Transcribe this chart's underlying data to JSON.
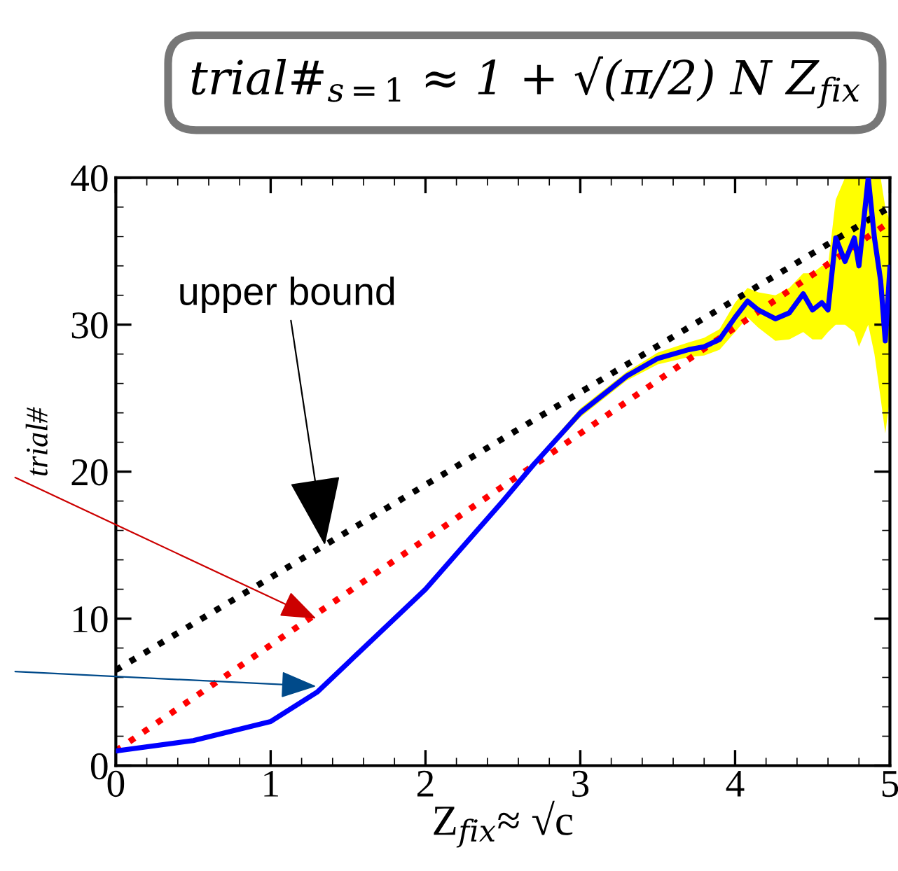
{
  "chart_data": {
    "type": "line",
    "title": "trial#$_{s=1}$ ≈ 1 + √(π/2) N Z$_{fix}$",
    "xlabel": "Z$_{fix}$≈ √c",
    "ylabel": "trial#",
    "xlim": [
      0,
      5
    ],
    "ylim": [
      0,
      40
    ],
    "xticks": [
      0,
      1,
      2,
      3,
      4,
      5
    ],
    "yticks": [
      0,
      10,
      20,
      30,
      40
    ],
    "grid": false,
    "marker": "none",
    "annotations": [
      {
        "text": "upper bound",
        "x": 1.35,
        "y": 15
      }
    ],
    "series": [
      {
        "color": "#000000",
        "line_style": "dotted",
        "x": [
          0,
          5
        ],
        "values": [
          6.5,
          38
        ]
      },
      {
        "color": "#ff0000",
        "line_style": "dotted",
        "x": [
          0,
          5
        ],
        "values": [
          1,
          37
        ]
      },
      {
        "color": "#0000ff",
        "line_style": "solid",
        "x": [
          0,
          0.5,
          1,
          1.3,
          1.5,
          2,
          2.5,
          2.7,
          3,
          3.3,
          3.5,
          3.7,
          3.8,
          3.9,
          4.0,
          4.08,
          4.15,
          4.26,
          4.35,
          4.44,
          4.5,
          4.56,
          4.6,
          4.65,
          4.71,
          4.77,
          4.8,
          4.86,
          4.9,
          4.94,
          4.97,
          5.0
        ],
        "values": [
          1,
          1.7,
          3,
          5,
          7,
          12,
          18,
          20.5,
          24,
          26.5,
          27.7,
          28.3,
          28.5,
          29,
          30.5,
          31.6,
          31,
          30.4,
          30.8,
          32.1,
          31,
          31.5,
          31,
          35.9,
          34.3,
          35.9,
          34,
          40,
          35.9,
          33,
          28.9,
          33.9
        ],
        "lower": [
          0.9,
          1.6,
          2.9,
          4.9,
          6.9,
          11.9,
          17.9,
          20.3,
          23.7,
          26.2,
          27.3,
          27.8,
          27.9,
          28.3,
          29.5,
          30.5,
          29.8,
          28.9,
          29,
          29.5,
          29,
          29,
          29.5,
          30,
          30,
          29.5,
          28.5,
          30,
          28,
          25,
          22.6,
          25
        ],
        "upper": [
          1.1,
          1.8,
          3.1,
          5.1,
          7.1,
          12.1,
          18.1,
          20.7,
          24.3,
          26.8,
          28.1,
          28.8,
          29.1,
          29.7,
          31.5,
          32.5,
          32.2,
          32,
          32.5,
          33.5,
          33.5,
          34,
          34,
          38.5,
          40,
          40,
          40,
          40,
          40,
          40,
          38,
          37
        ]
      }
    ]
  }
}
